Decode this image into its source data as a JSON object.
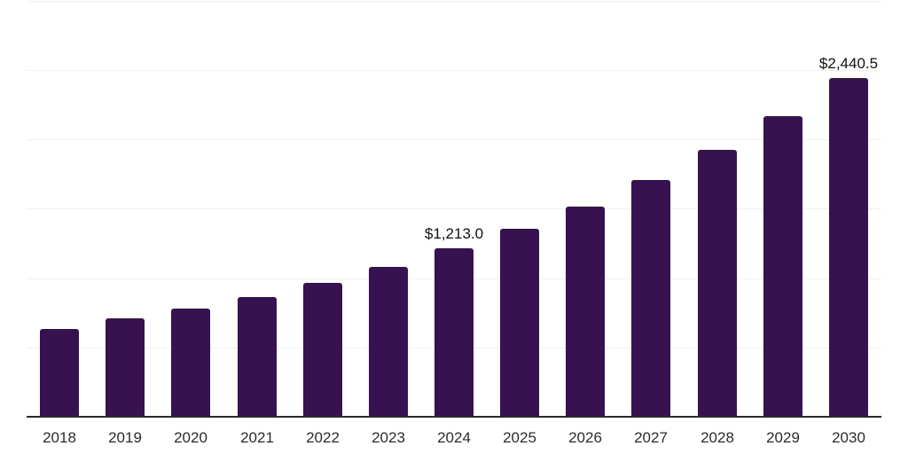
{
  "chart": {
    "background_color": "#ffffff",
    "bar_color": "#371150",
    "grid_color": "#f1f1f1",
    "axis_color": "#2a2a2a",
    "tick_label_color": "#2b2b2b",
    "data_label_color": "#111111"
  },
  "chart_data": {
    "type": "bar",
    "title": "",
    "xlabel": "",
    "ylabel": "",
    "categories": [
      "2018",
      "2019",
      "2020",
      "2021",
      "2022",
      "2023",
      "2024",
      "2025",
      "2026",
      "2027",
      "2028",
      "2029",
      "2030"
    ],
    "values": [
      632,
      707,
      779,
      866,
      968,
      1080,
      1213.0,
      1356,
      1516,
      1711,
      1926,
      2166,
      2440.5
    ],
    "ylim": [
      0,
      3000
    ],
    "grid_step": 500,
    "grid": true,
    "legend": false,
    "data_labels": [
      {
        "category": "2024",
        "text": "$1,213.0"
      },
      {
        "category": "2030",
        "text": "$2,440.5"
      }
    ]
  }
}
